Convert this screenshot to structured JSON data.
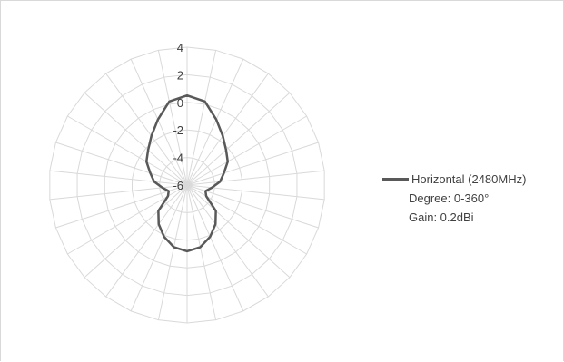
{
  "chart_data": {
    "type": "radar",
    "title": "",
    "radial_axis": {
      "min": -6,
      "max": 4,
      "ticks": [
        4,
        2,
        0,
        -2,
        -4,
        -6
      ],
      "tick_labels": [
        "4",
        "2",
        "0",
        "-2",
        "-4",
        "-6"
      ]
    },
    "angular_axis": {
      "categories_count": 30,
      "degree_range": [
        0,
        360
      ]
    },
    "grid": true,
    "legend_position": "right",
    "series": [
      {
        "name": "Horizontal (2480MHz)",
        "color": "#595959",
        "values": [
          0.5,
          0.2,
          -0.8,
          -1.6,
          -2.2,
          -2.6,
          -3.2,
          -3.6,
          -4.2,
          -4.6,
          -4.4,
          -3.2,
          -2.5,
          -1.9,
          -1.4,
          -1.2,
          -1.4,
          -1.9,
          -2.5,
          -3.2,
          -4.4,
          -4.6,
          -4.2,
          -3.6,
          -3.2,
          -2.6,
          -2.2,
          -1.6,
          -0.8,
          0.2
        ]
      }
    ],
    "annotations": [
      "Degree: 0-360°",
      "Gain: 0.2dBi"
    ]
  },
  "legend": {
    "series_label": "Horizontal (2480MHz)",
    "degree_note": "Degree: 0-360°",
    "gain_note": "Gain: 0.2dBi"
  }
}
